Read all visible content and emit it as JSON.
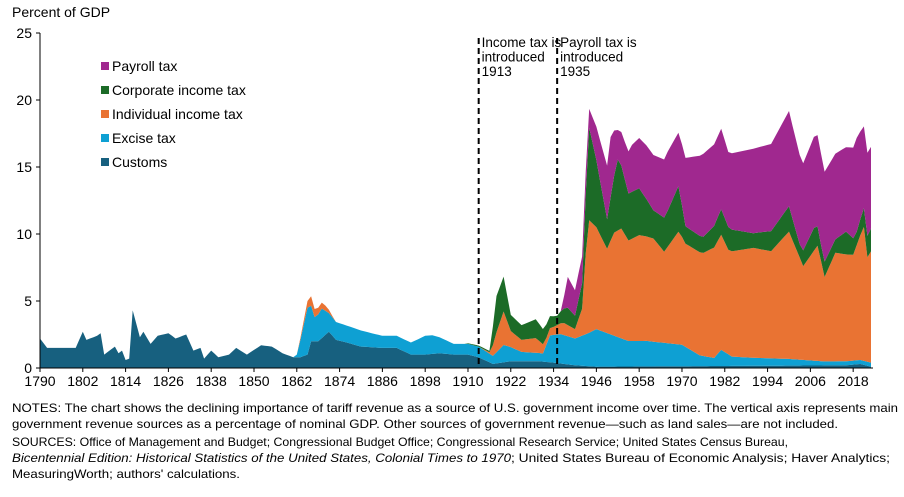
{
  "chart_data": {
    "type": "area",
    "stacked": true,
    "ylabel": "Percent of GDP",
    "xlim": [
      1790,
      2023
    ],
    "ylim": [
      0,
      25
    ],
    "yticks": [
      0,
      5,
      10,
      15,
      20,
      25
    ],
    "xticks": [
      1790,
      1802,
      1814,
      1826,
      1838,
      1850,
      1862,
      1874,
      1886,
      1898,
      1910,
      1922,
      1934,
      1946,
      1958,
      1970,
      1982,
      1994,
      2006,
      2018
    ],
    "grid": false,
    "legend_position": "top-left",
    "series": [
      {
        "name": "Customs",
        "color": "#17607f",
        "points": [
          [
            1790,
            2.2
          ],
          [
            1792,
            1.5
          ],
          [
            1795,
            1.5
          ],
          [
            1800,
            1.5
          ],
          [
            1802,
            2.7
          ],
          [
            1803,
            2.1
          ],
          [
            1806,
            2.4
          ],
          [
            1807,
            2.6
          ],
          [
            1808,
            1.0
          ],
          [
            1811,
            1.6
          ],
          [
            1812,
            1.1
          ],
          [
            1813,
            1.3
          ],
          [
            1814,
            0.6
          ],
          [
            1815,
            0.7
          ],
          [
            1816,
            4.3
          ],
          [
            1818,
            2.3
          ],
          [
            1819,
            2.7
          ],
          [
            1821,
            1.8
          ],
          [
            1823,
            2.4
          ],
          [
            1826,
            2.6
          ],
          [
            1828,
            2.2
          ],
          [
            1831,
            2.5
          ],
          [
            1833,
            1.3
          ],
          [
            1835,
            1.5
          ],
          [
            1836,
            0.7
          ],
          [
            1838,
            1.3
          ],
          [
            1840,
            0.8
          ],
          [
            1843,
            1.0
          ],
          [
            1845,
            1.5
          ],
          [
            1848,
            1.0
          ],
          [
            1852,
            1.7
          ],
          [
            1855,
            1.6
          ],
          [
            1858,
            1.1
          ],
          [
            1861,
            0.8
          ],
          [
            1863,
            0.8
          ],
          [
            1865,
            1.0
          ],
          [
            1866,
            2.0
          ],
          [
            1868,
            2.0
          ],
          [
            1871,
            2.7
          ],
          [
            1873,
            2.1
          ],
          [
            1876,
            1.9
          ],
          [
            1880,
            1.6
          ],
          [
            1886,
            1.5
          ],
          [
            1890,
            1.5
          ],
          [
            1894,
            1.0
          ],
          [
            1898,
            1.0
          ],
          [
            1902,
            1.1
          ],
          [
            1906,
            1.0
          ],
          [
            1910,
            1.0
          ],
          [
            1913,
            0.8
          ],
          [
            1917,
            0.3
          ],
          [
            1922,
            0.5
          ],
          [
            1930,
            0.5
          ],
          [
            1934,
            0.4
          ],
          [
            1940,
            0.2
          ],
          [
            1946,
            0.1
          ],
          [
            2016,
            0.2
          ],
          [
            2020,
            0.3
          ],
          [
            2023,
            0.1
          ]
        ]
      },
      {
        "name": "Excise tax",
        "color": "#0ea0d3",
        "points": [
          [
            1790,
            0
          ],
          [
            1861,
            0
          ],
          [
            1862,
            0.2
          ],
          [
            1865,
            3.5
          ],
          [
            1867,
            1.8
          ],
          [
            1869,
            2.2
          ],
          [
            1871,
            1.4
          ],
          [
            1874,
            1.3
          ],
          [
            1880,
            1.2
          ],
          [
            1886,
            0.9
          ],
          [
            1890,
            0.9
          ],
          [
            1894,
            0.9
          ],
          [
            1898,
            1.4
          ],
          [
            1900,
            1.4
          ],
          [
            1906,
            0.8
          ],
          [
            1910,
            0.8
          ],
          [
            1913,
            0.8
          ],
          [
            1917,
            0.6
          ],
          [
            1920,
            1.3
          ],
          [
            1925,
            0.7
          ],
          [
            1931,
            0.6
          ],
          [
            1933,
            2.0
          ],
          [
            1936,
            2.2
          ],
          [
            1940,
            2.0
          ],
          [
            1944,
            2.5
          ],
          [
            1946,
            2.8
          ],
          [
            1950,
            2.4
          ],
          [
            1955,
            1.9
          ],
          [
            1960,
            1.9
          ],
          [
            1970,
            1.6
          ],
          [
            1975,
            0.8
          ],
          [
            1979,
            0.6
          ],
          [
            1981,
            1.2
          ],
          [
            1984,
            0.7
          ],
          [
            1990,
            0.6
          ],
          [
            2000,
            0.5
          ],
          [
            2010,
            0.3
          ],
          [
            2020,
            0.3
          ],
          [
            2023,
            0.3
          ]
        ]
      },
      {
        "name": "Individual income tax",
        "color": "#e97333",
        "points": [
          [
            1790,
            0
          ],
          [
            1862,
            0
          ],
          [
            1864,
            0.3
          ],
          [
            1866,
            0.7
          ],
          [
            1868,
            0.5
          ],
          [
            1870,
            0.4
          ],
          [
            1872,
            0.1
          ],
          [
            1873,
            0
          ],
          [
            1913,
            0
          ],
          [
            1916,
            0.1
          ],
          [
            1918,
            1.5
          ],
          [
            1920,
            2.5
          ],
          [
            1922,
            1.2
          ],
          [
            1925,
            0.9
          ],
          [
            1929,
            1.1
          ],
          [
            1932,
            0.5
          ],
          [
            1934,
            0.6
          ],
          [
            1937,
            0.9
          ],
          [
            1940,
            0.7
          ],
          [
            1942,
            2.0
          ],
          [
            1943,
            6.0
          ],
          [
            1944,
            8.4
          ],
          [
            1946,
            7.6
          ],
          [
            1949,
            6.3
          ],
          [
            1951,
            7.7
          ],
          [
            1953,
            8.2
          ],
          [
            1955,
            7.5
          ],
          [
            1958,
            7.9
          ],
          [
            1962,
            7.7
          ],
          [
            1965,
            6.8
          ],
          [
            1969,
            8.4
          ],
          [
            1971,
            7.7
          ],
          [
            1976,
            7.7
          ],
          [
            1981,
            8.6
          ],
          [
            1983,
            7.8
          ],
          [
            1990,
            8.2
          ],
          [
            1995,
            8.0
          ],
          [
            2000,
            9.5
          ],
          [
            2004,
            7.0
          ],
          [
            2008,
            8.6
          ],
          [
            2010,
            6.3
          ],
          [
            2013,
            8.1
          ],
          [
            2018,
            7.9
          ],
          [
            2021,
            10.0
          ],
          [
            2022,
            7.8
          ],
          [
            2023,
            8.3
          ]
        ]
      },
      {
        "name": "Corporate income tax",
        "color": "#1c6b27",
        "points": [
          [
            1790,
            0
          ],
          [
            1909,
            0
          ],
          [
            1910,
            0.05
          ],
          [
            1916,
            0.1
          ],
          [
            1918,
            2.7
          ],
          [
            1920,
            2.6
          ],
          [
            1922,
            1.2
          ],
          [
            1925,
            1.1
          ],
          [
            1929,
            1.4
          ],
          [
            1932,
            1.0
          ],
          [
            1935,
            0.7
          ],
          [
            1938,
            1.3
          ],
          [
            1940,
            1.0
          ],
          [
            1942,
            1.9
          ],
          [
            1944,
            6.9
          ],
          [
            1946,
            5.0
          ],
          [
            1949,
            2.2
          ],
          [
            1952,
            5.3
          ],
          [
            1955,
            3.5
          ],
          [
            1958,
            3.5
          ],
          [
            1962,
            2.1
          ],
          [
            1966,
            2.7
          ],
          [
            1969,
            3.4
          ],
          [
            1971,
            1.3
          ],
          [
            1976,
            1.2
          ],
          [
            1981,
            1.9
          ],
          [
            1983,
            1.7
          ],
          [
            1990,
            1.1
          ],
          [
            2000,
            1.9
          ],
          [
            2003,
            1.0
          ],
          [
            2007,
            1.7
          ],
          [
            2009,
            1.2
          ],
          [
            2013,
            1.0
          ],
          [
            2016,
            1.7
          ],
          [
            2019,
            1.0
          ],
          [
            2021,
            1.4
          ],
          [
            2022,
            1.6
          ],
          [
            2023,
            1.7
          ]
        ]
      },
      {
        "name": "Payroll tax",
        "color": "#a0288f",
        "points": [
          [
            1790,
            0
          ],
          [
            1936,
            0
          ],
          [
            1937,
            1.0
          ],
          [
            1938,
            2.3
          ],
          [
            1940,
            1.9
          ],
          [
            1942,
            2.0
          ],
          [
            1944,
            1.4
          ],
          [
            1946,
            2.5
          ],
          [
            1948,
            3.5
          ],
          [
            1950,
            4.5
          ],
          [
            1952,
            2.2
          ],
          [
            1954,
            2.8
          ],
          [
            1956,
            3.5
          ],
          [
            1960,
            4.0
          ],
          [
            1966,
            4.4
          ],
          [
            1969,
            4.0
          ],
          [
            1971,
            5.1
          ],
          [
            1976,
            6.2
          ],
          [
            1981,
            6.0
          ],
          [
            1983,
            5.6
          ],
          [
            1990,
            6.3
          ],
          [
            1995,
            6.5
          ],
          [
            2000,
            7.1
          ],
          [
            2004,
            6.5
          ],
          [
            2007,
            6.8
          ],
          [
            2009,
            6.8
          ],
          [
            2013,
            6.4
          ],
          [
            2016,
            6.3
          ],
          [
            2019,
            7.0
          ],
          [
            2021,
            6.1
          ],
          [
            2022,
            6.2
          ],
          [
            2023,
            6.1
          ]
        ]
      }
    ],
    "legend_order": [
      "Payroll tax",
      "Corporate income tax",
      "Individual income tax",
      "Excise tax",
      "Customs"
    ],
    "annotations": [
      {
        "year": 1913,
        "lines": [
          "Income tax is",
          "introduced",
          "1913"
        ]
      },
      {
        "year": 1935,
        "lines": [
          "Payroll tax is",
          "introduced",
          "1935"
        ]
      }
    ]
  },
  "notes": {
    "lines": [
      "NOTES: The chart shows the declining importance of tariff revenue as a source of U.S. government income over time. The vertical axis represents main",
      "government revenue sources as a percentage of nominal GDP. Other sources of government revenue—such as land sales—are not included.",
      "SOURCES: Office of Management and Budget; Congressional Budget Office; Congressional Research Service; United States Census Bureau,",
      "; United States Bureau of Economic Analysis; Haver Analytics;",
      "MeasuringWorth; authors' calculations."
    ],
    "italic_title": "Bicentennial Edition: Historical Statistics of the United States, Colonial Times to 1970"
  }
}
